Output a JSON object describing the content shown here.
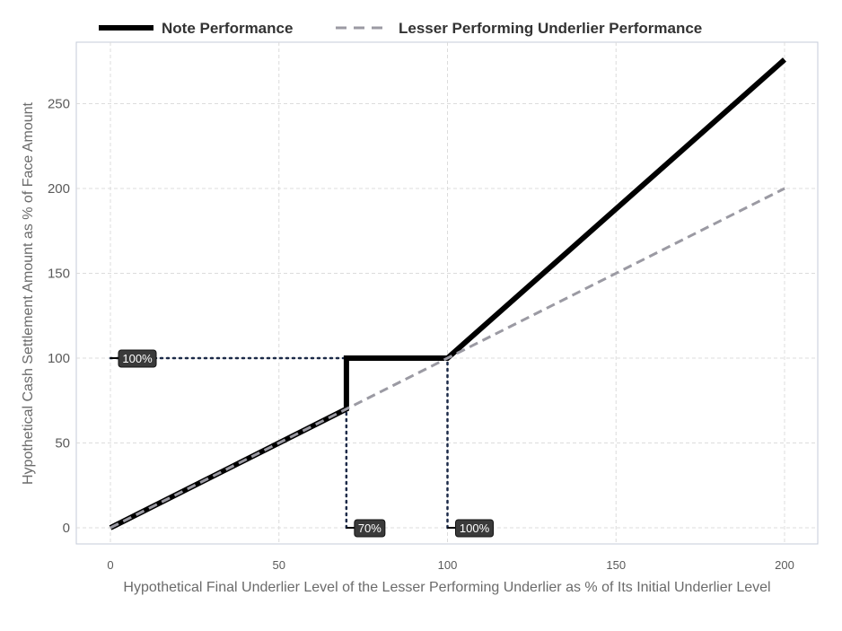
{
  "chart_data": {
    "type": "line",
    "xlabel": "Hypothetical Final Underlier Level of the Lesser Performing Underlier as % of Its Initial Underlier Level",
    "ylabel": "Hypothetical Cash Settlement Amount as % of Face Amount",
    "xlim": [
      -10,
      210
    ],
    "ylim": [
      -10,
      287
    ],
    "x_ticks": [
      "0",
      "50",
      "100",
      "150",
      "200"
    ],
    "y_ticks": [
      "0",
      "50",
      "100",
      "150",
      "200",
      "250"
    ],
    "grid": true,
    "legend_position": "top",
    "series": [
      {
        "name": "Note Performance",
        "color": "#000000",
        "style": "solid",
        "points": [
          [
            0,
            0
          ],
          [
            70,
            70
          ],
          [
            70,
            100
          ],
          [
            100,
            100
          ],
          [
            200,
            276
          ]
        ]
      },
      {
        "name": "Lesser Performing Underlier Performance",
        "color": "#9b9aa3",
        "style": "dashed",
        "points": [
          [
            0,
            0
          ],
          [
            200,
            200
          ]
        ]
      }
    ],
    "reference_lines": [
      {
        "from": [
          0,
          100
        ],
        "to": [
          100,
          100
        ]
      },
      {
        "from": [
          70,
          0
        ],
        "to": [
          70,
          100
        ]
      },
      {
        "from": [
          100,
          0
        ],
        "to": [
          100,
          100
        ]
      }
    ],
    "annotations": [
      {
        "label": "100%",
        "x": 0,
        "y": 100
      },
      {
        "label": "70%",
        "x": 70,
        "y": 0
      },
      {
        "label": "100%",
        "x": 100,
        "y": 0
      }
    ]
  }
}
